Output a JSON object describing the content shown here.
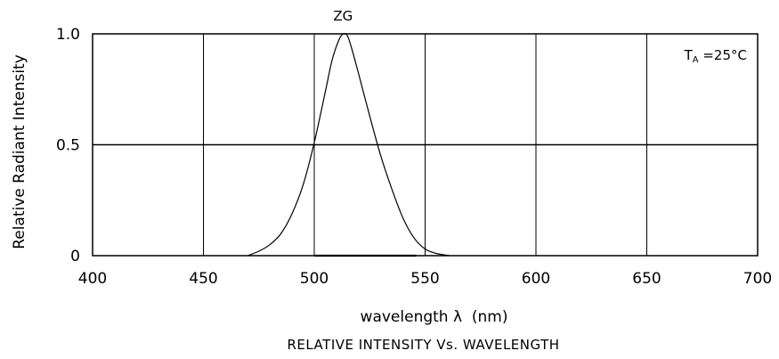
{
  "chart_data": {
    "type": "line",
    "title": "RELATIVE INTENSITY Vs. WAVELENGTH",
    "xlabel": "wavelength λ  (nm)",
    "ylabel": "Relative Radiant Intensity",
    "xlim": [
      400,
      700
    ],
    "ylim": [
      0,
      1.0
    ],
    "x_ticks": [
      400,
      450,
      500,
      550,
      600,
      650,
      700
    ],
    "x_tick_labels": [
      "400",
      "450",
      "500",
      "550",
      "600",
      "650",
      "700"
    ],
    "y_ticks": [
      0,
      0.5,
      1.0
    ],
    "y_tick_labels": [
      "0",
      "0.5",
      "1.0"
    ],
    "grid": true,
    "annotation": {
      "text_main": "T",
      "text_sub": "A",
      "text_rest": " =25°C",
      "placement": "top-right"
    },
    "series": [
      {
        "name": "ZG",
        "x": [
          470,
          475,
          480,
          485,
          490,
          495,
          500,
          505,
          508,
          511,
          513,
          515,
          517,
          520,
          525,
          530,
          535,
          540,
          545,
          550,
          555,
          561
        ],
        "y": [
          0.0,
          0.02,
          0.05,
          0.1,
          0.19,
          0.32,
          0.51,
          0.74,
          0.88,
          0.97,
          1.0,
          0.99,
          0.93,
          0.82,
          0.63,
          0.45,
          0.3,
          0.17,
          0.08,
          0.03,
          0.01,
          0.0
        ]
      }
    ]
  }
}
